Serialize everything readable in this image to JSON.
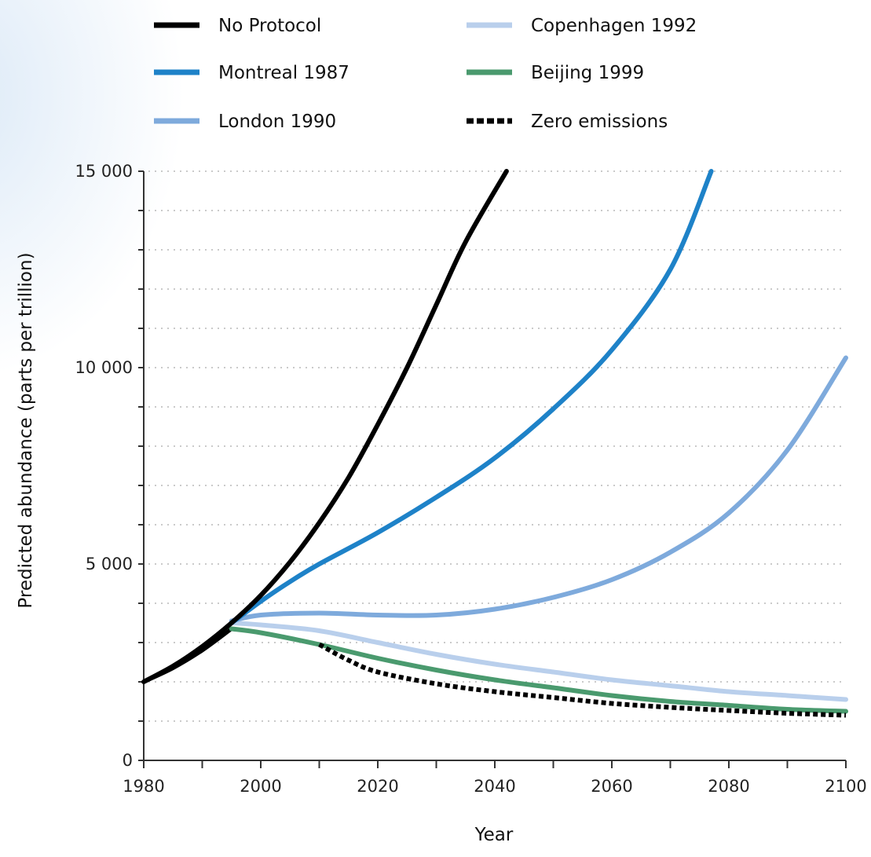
{
  "chart_data": {
    "type": "line",
    "title": "",
    "xlabel": "Year",
    "ylabel": "Predicted abundance (parts per trillion)",
    "xlim": [
      1980,
      2100
    ],
    "ylim": [
      0,
      15000
    ],
    "x_ticks": [
      1980,
      2000,
      2020,
      2040,
      2060,
      2080,
      2100
    ],
    "x_tick_labels": [
      "1980",
      "2000",
      "2020",
      "2040",
      "2060",
      "2080",
      "2100"
    ],
    "y_ticks": [
      0,
      5000,
      10000,
      15000
    ],
    "y_tick_labels": [
      "0",
      "5 000",
      "10 000",
      "15 000"
    ],
    "grid": "horizontal dotted every 1000",
    "legend_position": "top",
    "series": [
      {
        "name": "No Protocol",
        "color": "#000000",
        "dash": "solid",
        "points": [
          [
            1980,
            2000
          ],
          [
            1985,
            2400
          ],
          [
            1990,
            2900
          ],
          [
            1995,
            3500
          ],
          [
            2000,
            4200
          ],
          [
            2005,
            5050
          ],
          [
            2010,
            6050
          ],
          [
            2015,
            7200
          ],
          [
            2020,
            8550
          ],
          [
            2025,
            10000
          ],
          [
            2030,
            11600
          ],
          [
            2035,
            13200
          ],
          [
            2042,
            15000
          ]
        ]
      },
      {
        "name": "Montreal 1987",
        "color": "#1e82c8",
        "dash": "solid",
        "points": [
          [
            1995,
            3500
          ],
          [
            2000,
            4050
          ],
          [
            2005,
            4550
          ],
          [
            2010,
            5000
          ],
          [
            2020,
            5800
          ],
          [
            2030,
            6700
          ],
          [
            2040,
            7700
          ],
          [
            2050,
            8950
          ],
          [
            2060,
            10450
          ],
          [
            2070,
            12500
          ],
          [
            2077,
            15000
          ]
        ]
      },
      {
        "name": "London 1990",
        "color": "#7eaadc",
        "dash": "solid",
        "points": [
          [
            1995,
            3550
          ],
          [
            2000,
            3700
          ],
          [
            2010,
            3750
          ],
          [
            2020,
            3700
          ],
          [
            2030,
            3700
          ],
          [
            2040,
            3850
          ],
          [
            2050,
            4150
          ],
          [
            2060,
            4600
          ],
          [
            2070,
            5300
          ],
          [
            2080,
            6300
          ],
          [
            2090,
            7900
          ],
          [
            2100,
            10250
          ]
        ]
      },
      {
        "name": "Copenhagen 1992",
        "color": "#b9cfec",
        "dash": "solid",
        "points": [
          [
            1995,
            3500
          ],
          [
            2000,
            3450
          ],
          [
            2010,
            3300
          ],
          [
            2020,
            3000
          ],
          [
            2030,
            2700
          ],
          [
            2040,
            2450
          ],
          [
            2050,
            2250
          ],
          [
            2060,
            2050
          ],
          [
            2070,
            1900
          ],
          [
            2080,
            1750
          ],
          [
            2090,
            1650
          ],
          [
            2100,
            1550
          ]
        ]
      },
      {
        "name": "Beijing 1999",
        "color": "#4a9a6e",
        "dash": "solid",
        "points": [
          [
            1995,
            3350
          ],
          [
            2000,
            3250
          ],
          [
            2010,
            2950
          ],
          [
            2020,
            2600
          ],
          [
            2030,
            2300
          ],
          [
            2040,
            2050
          ],
          [
            2050,
            1850
          ],
          [
            2060,
            1650
          ],
          [
            2070,
            1500
          ],
          [
            2080,
            1400
          ],
          [
            2090,
            1300
          ],
          [
            2100,
            1250
          ]
        ]
      },
      {
        "name": "Zero emissions",
        "color": "#000000",
        "dash": "dashed",
        "points": [
          [
            2010,
            2950
          ],
          [
            2015,
            2550
          ],
          [
            2020,
            2250
          ],
          [
            2030,
            1950
          ],
          [
            2040,
            1750
          ],
          [
            2050,
            1600
          ],
          [
            2060,
            1450
          ],
          [
            2070,
            1350
          ],
          [
            2080,
            1270
          ],
          [
            2090,
            1200
          ],
          [
            2100,
            1150
          ]
        ]
      }
    ],
    "history": {
      "color": "#000000",
      "points": [
        [
          1980,
          2000
        ],
        [
          1985,
          2350
        ],
        [
          1990,
          2800
        ],
        [
          1995,
          3350
        ]
      ]
    }
  }
}
